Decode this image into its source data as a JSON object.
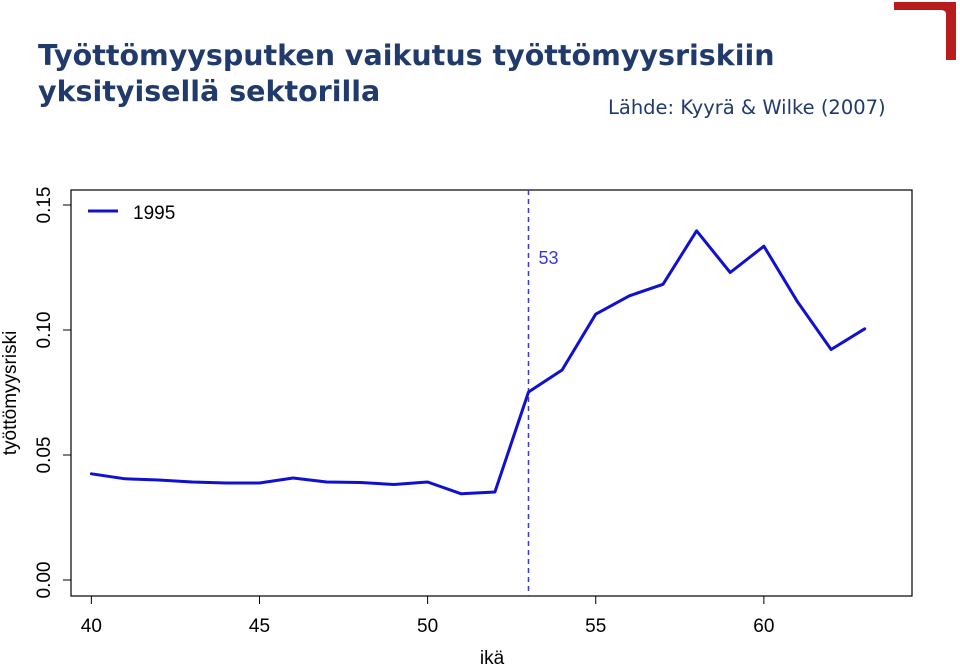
{
  "title_line1": "Työttömyysputken vaikutus työttömyysriskiin",
  "title_line2": "yksityisellä sektorilla",
  "source": "Lähde: Kyyrä & Wilke (2007)",
  "colors": {
    "title": "#1f3a6b",
    "line": "#1010d0",
    "marker": "#3a3ad0",
    "logo": "#b81c1c"
  },
  "chart_data": {
    "type": "line",
    "title": "",
    "xlabel": "ikä",
    "ylabel": "työttömyysriski",
    "xlim": [
      39.9,
      63.9
    ],
    "ylim": [
      0.0,
      0.15
    ],
    "xticks": [
      40,
      45,
      50,
      55,
      60
    ],
    "yticks": [
      0.0,
      0.05,
      0.1,
      0.15
    ],
    "ytick_labels": [
      "0.00",
      "0.05",
      "0.10",
      "0.15"
    ],
    "legend": {
      "position": "top-left",
      "entries": [
        "1995"
      ]
    },
    "series": [
      {
        "name": "1995",
        "x": [
          40,
          41,
          42,
          43,
          44,
          45,
          46,
          47,
          48,
          49,
          50,
          51,
          52,
          53,
          54,
          55,
          56,
          57,
          58,
          59,
          60,
          61,
          62,
          63
        ],
        "y": [
          0.0425,
          0.0405,
          0.04,
          0.0392,
          0.0388,
          0.0388,
          0.0408,
          0.0392,
          0.039,
          0.0382,
          0.0392,
          0.0345,
          0.0352,
          0.0752,
          0.084,
          0.1063,
          0.1137,
          0.1183,
          0.1397,
          0.123,
          0.1335,
          0.1113,
          0.0922,
          0.1005
        ]
      }
    ],
    "annotations": [
      {
        "x": 53,
        "label": "53",
        "style": "dashed vertical line"
      }
    ],
    "grid": false
  }
}
